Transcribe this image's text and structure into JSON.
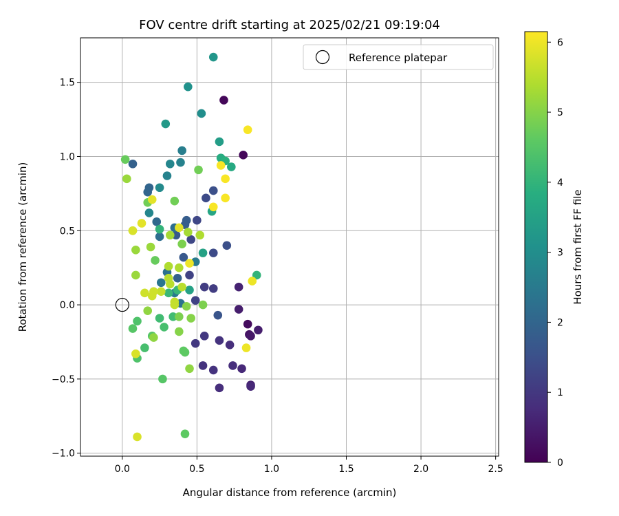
{
  "chart_data": {
    "type": "scatter",
    "title": "FOV centre drift starting at 2025/02/21 09:19:04",
    "xlabel": "Angular distance from reference (arcmin)",
    "ylabel": "Rotation from reference (arcmin)",
    "xlim": [
      -0.28,
      2.52
    ],
    "ylim": [
      -1.02,
      1.8
    ],
    "xticks": [
      0.0,
      0.5,
      1.0,
      1.5,
      2.0,
      2.5
    ],
    "xtick_labels": [
      "0.0",
      "0.5",
      "1.0",
      "1.5",
      "2.0",
      "2.5"
    ],
    "yticks": [
      -1.0,
      -0.5,
      0.0,
      0.5,
      1.0,
      1.5
    ],
    "ytick_labels": [
      "−1.0",
      "−0.5",
      "0.0",
      "0.5",
      "1.0",
      "1.5"
    ],
    "grid": true,
    "legend": {
      "placement": "top-right",
      "entries": [
        "Reference platepar"
      ]
    },
    "reference_point": {
      "x": 0.0,
      "y": 0.0
    },
    "colorbar": {
      "label": "Hours from first FF file",
      "colormap": "viridis",
      "range": [
        0,
        6.15
      ],
      "ticks": [
        0,
        1,
        2,
        3,
        4,
        5,
        6
      ],
      "tick_labels": [
        "0",
        "1",
        "2",
        "3",
        "4",
        "5",
        "6"
      ]
    },
    "points": [
      {
        "x": 0.68,
        "y": 1.38,
        "h": 0.1
      },
      {
        "x": 0.81,
        "y": 1.01,
        "h": 0.1
      },
      {
        "x": 0.84,
        "y": -0.13,
        "h": 0.2
      },
      {
        "x": 0.85,
        "y": -0.2,
        "h": 0.3
      },
      {
        "x": 0.86,
        "y": -0.21,
        "h": 0.4
      },
      {
        "x": 0.91,
        "y": -0.17,
        "h": 0.5
      },
      {
        "x": 0.78,
        "y": -0.03,
        "h": 0.5
      },
      {
        "x": 0.78,
        "y": 0.12,
        "h": 0.6
      },
      {
        "x": 0.86,
        "y": -0.54,
        "h": 0.6
      },
      {
        "x": 0.86,
        "y": -0.55,
        "h": 0.7
      },
      {
        "x": 0.8,
        "y": -0.43,
        "h": 0.7
      },
      {
        "x": 0.74,
        "y": -0.41,
        "h": 0.8
      },
      {
        "x": 0.72,
        "y": -0.27,
        "h": 0.8
      },
      {
        "x": 0.65,
        "y": -0.56,
        "h": 0.8
      },
      {
        "x": 0.61,
        "y": -0.44,
        "h": 0.9
      },
      {
        "x": 0.54,
        "y": -0.41,
        "h": 0.9
      },
      {
        "x": 0.65,
        "y": -0.24,
        "h": 0.9
      },
      {
        "x": 0.55,
        "y": -0.21,
        "h": 1.0
      },
      {
        "x": 0.49,
        "y": -0.26,
        "h": 1.0
      },
      {
        "x": 0.55,
        "y": 0.12,
        "h": 1.1
      },
      {
        "x": 0.61,
        "y": 0.11,
        "h": 1.1
      },
      {
        "x": 0.45,
        "y": 0.2,
        "h": 1.2
      },
      {
        "x": 0.49,
        "y": 0.03,
        "h": 1.2
      },
      {
        "x": 0.46,
        "y": 0.44,
        "h": 1.3
      },
      {
        "x": 0.5,
        "y": 0.57,
        "h": 1.3
      },
      {
        "x": 0.61,
        "y": 0.35,
        "h": 1.4
      },
      {
        "x": 0.56,
        "y": 0.72,
        "h": 1.4
      },
      {
        "x": 0.61,
        "y": 0.77,
        "h": 1.5
      },
      {
        "x": 0.7,
        "y": 0.4,
        "h": 1.5
      },
      {
        "x": 0.64,
        "y": -0.07,
        "h": 1.6
      },
      {
        "x": 0.41,
        "y": 0.32,
        "h": 1.7
      },
      {
        "x": 0.36,
        "y": 0.47,
        "h": 1.7
      },
      {
        "x": 0.43,
        "y": 0.57,
        "h": 1.8
      },
      {
        "x": 0.42,
        "y": 0.54,
        "h": 1.8
      },
      {
        "x": 0.37,
        "y": 0.18,
        "h": 1.9
      },
      {
        "x": 0.07,
        "y": 0.95,
        "h": 1.9
      },
      {
        "x": 0.17,
        "y": 0.76,
        "h": 2.0
      },
      {
        "x": 0.18,
        "y": 0.79,
        "h": 2.0
      },
      {
        "x": 0.23,
        "y": 0.56,
        "h": 2.1
      },
      {
        "x": 0.25,
        "y": 0.46,
        "h": 2.2
      },
      {
        "x": 0.35,
        "y": 0.52,
        "h": 2.2
      },
      {
        "x": 0.39,
        "y": 0.01,
        "h": 2.3
      },
      {
        "x": 0.3,
        "y": 0.22,
        "h": 2.3
      },
      {
        "x": 0.26,
        "y": 0.15,
        "h": 2.4
      },
      {
        "x": 0.35,
        "y": 0.08,
        "h": 2.5
      },
      {
        "x": 0.49,
        "y": 0.29,
        "h": 2.5
      },
      {
        "x": 0.4,
        "y": 1.04,
        "h": 2.6
      },
      {
        "x": 0.39,
        "y": 0.96,
        "h": 2.7
      },
      {
        "x": 0.3,
        "y": 0.87,
        "h": 2.7
      },
      {
        "x": 0.32,
        "y": 0.95,
        "h": 2.8
      },
      {
        "x": 0.18,
        "y": 0.62,
        "h": 2.8
      },
      {
        "x": 0.25,
        "y": 0.79,
        "h": 2.9
      },
      {
        "x": 0.53,
        "y": 1.29,
        "h": 3.0
      },
      {
        "x": 0.44,
        "y": 1.47,
        "h": 3.1
      },
      {
        "x": 0.61,
        "y": 1.67,
        "h": 3.2
      },
      {
        "x": 0.29,
        "y": 1.22,
        "h": 3.3
      },
      {
        "x": 0.65,
        "y": 1.1,
        "h": 3.4
      },
      {
        "x": 0.54,
        "y": 0.35,
        "h": 3.5
      },
      {
        "x": 0.45,
        "y": 0.1,
        "h": 3.5
      },
      {
        "x": 0.6,
        "y": 0.63,
        "h": 3.6
      },
      {
        "x": 0.73,
        "y": 0.93,
        "h": 3.7
      },
      {
        "x": 0.66,
        "y": 0.99,
        "h": 3.8
      },
      {
        "x": 0.69,
        "y": 0.97,
        "h": 3.9
      },
      {
        "x": 0.9,
        "y": 0.2,
        "h": 4.0
      },
      {
        "x": 0.25,
        "y": 0.51,
        "h": 4.0
      },
      {
        "x": 0.37,
        "y": 0.1,
        "h": 4.1
      },
      {
        "x": 0.31,
        "y": 0.08,
        "h": 4.1
      },
      {
        "x": 0.34,
        "y": -0.08,
        "h": 4.2
      },
      {
        "x": 0.25,
        "y": -0.09,
        "h": 4.2
      },
      {
        "x": 0.28,
        "y": -0.15,
        "h": 4.3
      },
      {
        "x": 0.15,
        "y": -0.29,
        "h": 4.3
      },
      {
        "x": 0.1,
        "y": -0.36,
        "h": 4.4
      },
      {
        "x": 0.1,
        "y": -0.11,
        "h": 4.4
      },
      {
        "x": 0.07,
        "y": -0.16,
        "h": 4.5
      },
      {
        "x": 0.2,
        "y": -0.21,
        "h": 4.5
      },
      {
        "x": 0.27,
        "y": -0.5,
        "h": 4.5
      },
      {
        "x": 0.41,
        "y": -0.31,
        "h": 4.6
      },
      {
        "x": 0.42,
        "y": -0.32,
        "h": 4.6
      },
      {
        "x": 0.42,
        "y": -0.87,
        "h": 4.6
      },
      {
        "x": 0.02,
        "y": 0.98,
        "h": 4.7
      },
      {
        "x": 0.22,
        "y": 0.3,
        "h": 4.7
      },
      {
        "x": 0.35,
        "y": 0.7,
        "h": 4.8
      },
      {
        "x": 0.17,
        "y": 0.69,
        "h": 4.8
      },
      {
        "x": 0.51,
        "y": 0.91,
        "h": 4.8
      },
      {
        "x": 0.4,
        "y": 0.41,
        "h": 4.9
      },
      {
        "x": 0.54,
        "y": 0.0,
        "h": 4.9
      },
      {
        "x": 0.38,
        "y": -0.08,
        "h": 4.9
      },
      {
        "x": 0.46,
        "y": -0.09,
        "h": 5.0
      },
      {
        "x": 0.43,
        "y": -0.01,
        "h": 5.0
      },
      {
        "x": 0.38,
        "y": -0.18,
        "h": 5.0
      },
      {
        "x": 0.21,
        "y": -0.22,
        "h": 5.1
      },
      {
        "x": 0.17,
        "y": -0.04,
        "h": 5.1
      },
      {
        "x": 0.45,
        "y": -0.43,
        "h": 5.1
      },
      {
        "x": 0.19,
        "y": 0.39,
        "h": 5.2
      },
      {
        "x": 0.09,
        "y": 0.37,
        "h": 5.2
      },
      {
        "x": 0.09,
        "y": 0.2,
        "h": 5.2
      },
      {
        "x": 0.03,
        "y": 0.85,
        "h": 5.2
      },
      {
        "x": 0.07,
        "y": 0.5,
        "h": 5.3
      },
      {
        "x": 0.32,
        "y": 0.47,
        "h": 5.3
      },
      {
        "x": 0.44,
        "y": 0.49,
        "h": 5.3
      },
      {
        "x": 0.52,
        "y": 0.47,
        "h": 5.4
      },
      {
        "x": 0.38,
        "y": 0.25,
        "h": 5.4
      },
      {
        "x": 0.31,
        "y": 0.26,
        "h": 5.4
      },
      {
        "x": 0.31,
        "y": 0.18,
        "h": 5.5
      },
      {
        "x": 0.32,
        "y": 0.14,
        "h": 5.5
      },
      {
        "x": 0.4,
        "y": 0.12,
        "h": 5.5
      },
      {
        "x": 0.35,
        "y": 0.02,
        "h": 5.6
      },
      {
        "x": 0.35,
        "y": 0.0,
        "h": 5.6
      },
      {
        "x": 0.26,
        "y": 0.09,
        "h": 5.6
      },
      {
        "x": 0.21,
        "y": 0.09,
        "h": 5.7
      },
      {
        "x": 0.15,
        "y": 0.08,
        "h": 5.7
      },
      {
        "x": 0.2,
        "y": 0.06,
        "h": 5.7
      },
      {
        "x": 0.09,
        "y": -0.33,
        "h": 5.8
      },
      {
        "x": 0.1,
        "y": -0.89,
        "h": 5.8
      },
      {
        "x": 0.07,
        "y": 0.5,
        "h": 5.8
      },
      {
        "x": 0.13,
        "y": 0.55,
        "h": 5.9
      },
      {
        "x": 0.2,
        "y": 0.71,
        "h": 5.9
      },
      {
        "x": 0.38,
        "y": 0.52,
        "h": 5.9
      },
      {
        "x": 0.45,
        "y": 0.28,
        "h": 6.0
      },
      {
        "x": 0.83,
        "y": -0.29,
        "h": 6.0
      },
      {
        "x": 0.87,
        "y": 0.16,
        "h": 6.0
      },
      {
        "x": 0.84,
        "y": 1.18,
        "h": 6.1
      },
      {
        "x": 0.66,
        "y": 0.94,
        "h": 6.1
      },
      {
        "x": 0.69,
        "y": 0.85,
        "h": 6.1
      },
      {
        "x": 0.69,
        "y": 0.72,
        "h": 6.1
      },
      {
        "x": 0.61,
        "y": 0.66,
        "h": 6.1
      }
    ]
  }
}
